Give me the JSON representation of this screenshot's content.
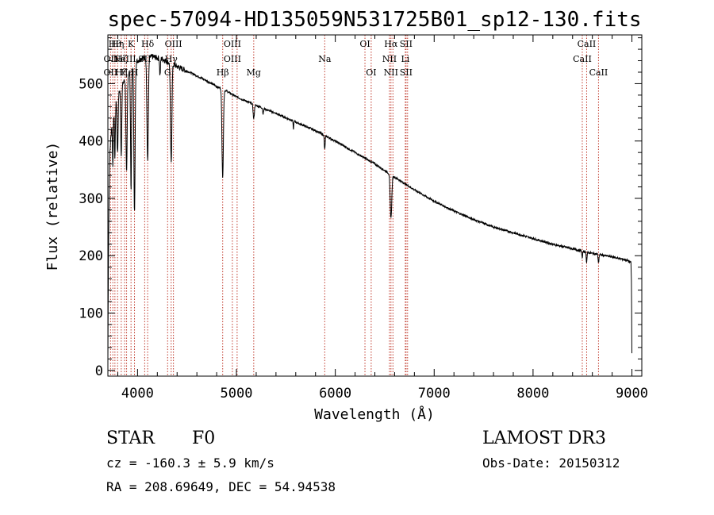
{
  "chart_data": {
    "type": "line",
    "title": "spec-57094-HD135059N531725B01_sp12-130.fits",
    "xlabel": "Wavelength (Å)",
    "ylabel": "Flux (relative)",
    "xlim": [
      3700,
      9100
    ],
    "ylim": [
      -10,
      585
    ],
    "xticks": [
      4000,
      5000,
      6000,
      7000,
      8000,
      9000
    ],
    "yticks": [
      0,
      100,
      200,
      300,
      400,
      500
    ],
    "spectrum_anchors": [
      [
        3700,
        20
      ],
      [
        3705,
        180
      ],
      [
        3712,
        300
      ],
      [
        3720,
        380
      ],
      [
        3735,
        420
      ],
      [
        3760,
        450
      ],
      [
        3800,
        480
      ],
      [
        3850,
        500
      ],
      [
        3900,
        515
      ],
      [
        3950,
        530
      ],
      [
        4000,
        540
      ],
      [
        4050,
        545
      ],
      [
        4150,
        547
      ],
      [
        4250,
        543
      ],
      [
        4400,
        530
      ],
      [
        4550,
        518
      ],
      [
        4700,
        505
      ],
      [
        4800,
        495
      ],
      [
        4900,
        487
      ],
      [
        5000,
        477
      ],
      [
        5200,
        462
      ],
      [
        5400,
        448
      ],
      [
        5600,
        433
      ],
      [
        5800,
        418
      ],
      [
        6000,
        400
      ],
      [
        6200,
        380
      ],
      [
        6400,
        360
      ],
      [
        6600,
        337
      ],
      [
        6800,
        315
      ],
      [
        7000,
        295
      ],
      [
        7200,
        278
      ],
      [
        7400,
        263
      ],
      [
        7600,
        250
      ],
      [
        7800,
        240
      ],
      [
        8000,
        230
      ],
      [
        8200,
        220
      ],
      [
        8400,
        212
      ],
      [
        8600,
        204
      ],
      [
        8800,
        198
      ],
      [
        8950,
        192
      ],
      [
        8990,
        188
      ],
      [
        8996,
        150
      ],
      [
        9000,
        30
      ]
    ],
    "absorption_features": [
      {
        "wavelength": 3750,
        "depth": 80,
        "width": 4
      },
      {
        "wavelength": 3771,
        "depth": 90,
        "width": 4
      },
      {
        "wavelength": 3798,
        "depth": 100,
        "width": 5
      },
      {
        "wavelength": 3835,
        "depth": 120,
        "width": 5
      },
      {
        "wavelength": 3889,
        "depth": 170,
        "width": 6
      },
      {
        "wavelength": 3934,
        "depth": 210,
        "width": 5
      },
      {
        "wavelength": 3969,
        "depth": 260,
        "width": 6
      },
      {
        "wavelength": 4102,
        "depth": 180,
        "width": 7
      },
      {
        "wavelength": 4227,
        "depth": 30,
        "width": 4
      },
      {
        "wavelength": 4340,
        "depth": 175,
        "width": 7
      },
      {
        "wavelength": 4861,
        "depth": 155,
        "width": 7
      },
      {
        "wavelength": 5175,
        "depth": 25,
        "width": 6
      },
      {
        "wavelength": 5270,
        "depth": 10,
        "width": 4
      },
      {
        "wavelength": 5576,
        "depth": 15,
        "width": 3
      },
      {
        "wavelength": 5893,
        "depth": 25,
        "width": 4
      },
      {
        "wavelength": 6563,
        "depth": 75,
        "width": 8
      },
      {
        "wavelength": 8498,
        "depth": 12,
        "width": 4
      },
      {
        "wavelength": 8542,
        "depth": 18,
        "width": 4
      },
      {
        "wavelength": 8662,
        "depth": 15,
        "width": 4
      }
    ],
    "line_markers": [
      {
        "wavelength": 3727,
        "rows": [
          "",
          "OII",
          "OII"
        ]
      },
      {
        "wavelength": 3750,
        "rows": [
          "",
          "",
          ""
        ]
      },
      {
        "wavelength": 3771,
        "rows": [
          "Hθ",
          "",
          ""
        ]
      },
      {
        "wavelength": 3798,
        "rows": [
          "Hη",
          "",
          ""
        ]
      },
      {
        "wavelength": 3835,
        "rows": [
          "",
          "Hζ",
          "Hζ"
        ]
      },
      {
        "wavelength": 3869,
        "rows": [
          "",
          "NeIII",
          ""
        ]
      },
      {
        "wavelength": 3889,
        "rows": [
          "",
          "",
          "Hε"
        ]
      },
      {
        "wavelength": 3934,
        "rows": [
          "K",
          "",
          ""
        ]
      },
      {
        "wavelength": 3969,
        "rows": [
          "",
          "",
          "H"
        ]
      },
      {
        "wavelength": 4072,
        "rows": [
          "",
          "SII",
          ""
        ]
      },
      {
        "wavelength": 4102,
        "rows": [
          "Hδ",
          "",
          ""
        ]
      },
      {
        "wavelength": 4304,
        "rows": [
          "",
          "",
          "G"
        ]
      },
      {
        "wavelength": 4340,
        "rows": [
          "",
          "Hγ",
          ""
        ]
      },
      {
        "wavelength": 4363,
        "rows": [
          "OIII",
          "",
          ""
        ]
      },
      {
        "wavelength": 4861,
        "rows": [
          "",
          "",
          "Hβ"
        ]
      },
      {
        "wavelength": 4959,
        "rows": [
          "OIII",
          "OIII",
          ""
        ]
      },
      {
        "wavelength": 5007,
        "rows": [
          "",
          "",
          ""
        ]
      },
      {
        "wavelength": 5175,
        "rows": [
          "",
          "",
          "Mg"
        ]
      },
      {
        "wavelength": 5893,
        "rows": [
          "",
          "Na",
          ""
        ]
      },
      {
        "wavelength": 6300,
        "rows": [
          "OI",
          "",
          ""
        ]
      },
      {
        "wavelength": 6363,
        "rows": [
          "",
          "",
          "OI"
        ]
      },
      {
        "wavelength": 6548,
        "rows": [
          "",
          "NII",
          ""
        ]
      },
      {
        "wavelength": 6563,
        "rows": [
          "Hα",
          "",
          "NII"
        ]
      },
      {
        "wavelength": 6583,
        "rows": [
          "",
          "",
          ""
        ]
      },
      {
        "wavelength": 6708,
        "rows": [
          "",
          "Li",
          ""
        ]
      },
      {
        "wavelength": 6716,
        "rows": [
          "SII",
          "",
          "SII"
        ]
      },
      {
        "wavelength": 6731,
        "rows": [
          "",
          "",
          ""
        ]
      },
      {
        "wavelength": 8498,
        "rows": [
          "",
          "CaII",
          ""
        ]
      },
      {
        "wavelength": 8542,
        "rows": [
          "CaII",
          "",
          ""
        ]
      },
      {
        "wavelength": 8662,
        "rows": [
          "",
          "",
          "CaII"
        ]
      }
    ],
    "colors": {
      "spectrum": "#000000",
      "marker": "#c0392b",
      "axes": "#000000"
    }
  },
  "info": {
    "object_class": "STAR",
    "subclass": "F0",
    "survey": "LAMOST DR3",
    "cz": "cz = -160.3 ± 5.9 km/s",
    "obs_date": "Obs-Date: 20150312",
    "coords": "RA = 208.69649, DEC =  54.94538"
  }
}
